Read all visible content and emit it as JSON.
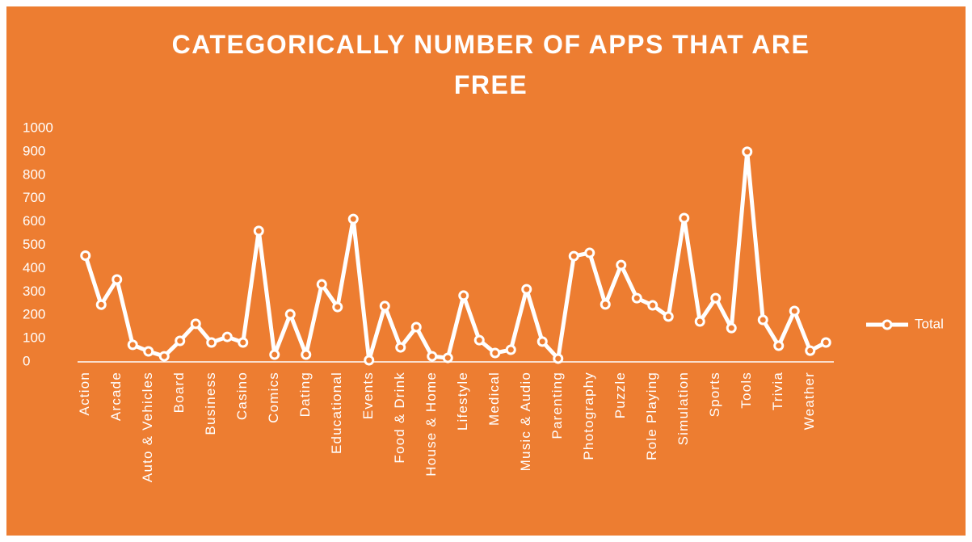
{
  "chart_data": {
    "type": "line",
    "title": "CATEGORICALLY NUMBER OF APPS THAT ARE FREE",
    "categories": [
      "Action",
      null,
      "Arcade",
      null,
      "Auto & Vehicles",
      null,
      "Board",
      null,
      "Business",
      null,
      "Casino",
      null,
      "Comics",
      null,
      "Dating",
      null,
      "Educational",
      null,
      "Events",
      null,
      "Food & Drink",
      null,
      "House & Home",
      null,
      "Lifestyle",
      null,
      "Medical",
      null,
      "Music & Audio",
      null,
      "Parenting",
      null,
      "Photography",
      null,
      "Puzzle",
      null,
      "Role Playing",
      null,
      "Simulation",
      null,
      "Sports",
      null,
      "Tools",
      null,
      "Trivia",
      null,
      "Weather",
      null
    ],
    "series": [
      {
        "name": "Total",
        "color": "#ffffff",
        "values": [
          455,
          245,
          353,
          73,
          45,
          24,
          90,
          163,
          83,
          107,
          83,
          561,
          31,
          204,
          31,
          332,
          235,
          612,
          7,
          239,
          62,
          149,
          24,
          17,
          284,
          93,
          38,
          52,
          311,
          87,
          14,
          453,
          467,
          246,
          415,
          273,
          242,
          194,
          616,
          173,
          273,
          145,
          900,
          180,
          69,
          218,
          48,
          83
        ]
      }
    ],
    "ylim": [
      0,
      1000
    ],
    "yticks": [
      0,
      100,
      200,
      300,
      400,
      500,
      600,
      700,
      800,
      900,
      1000
    ],
    "legend": "right"
  }
}
